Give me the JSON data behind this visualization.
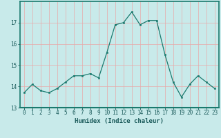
{
  "x": [
    0,
    1,
    2,
    3,
    4,
    5,
    6,
    7,
    8,
    9,
    10,
    11,
    12,
    13,
    14,
    15,
    16,
    17,
    18,
    19,
    20,
    21,
    22,
    23
  ],
  "y": [
    13.7,
    14.1,
    13.8,
    13.7,
    13.9,
    14.2,
    14.5,
    14.5,
    14.6,
    14.4,
    15.6,
    16.9,
    17.0,
    17.5,
    16.9,
    17.1,
    17.1,
    15.5,
    14.2,
    13.5,
    14.1,
    14.5,
    14.2,
    13.9
  ],
  "line_color": "#1a7a6e",
  "marker_color": "#1a7a6e",
  "bg_color": "#c8eaea",
  "grid_color": "#e8a8a8",
  "xlabel": "Humidex (Indice chaleur)",
  "ylim": [
    13,
    18
  ],
  "xlim": [
    -0.5,
    23.5
  ],
  "yticks": [
    13,
    14,
    15,
    16,
    17
  ],
  "xticks": [
    0,
    1,
    2,
    3,
    4,
    5,
    6,
    7,
    8,
    9,
    10,
    11,
    12,
    13,
    14,
    15,
    16,
    17,
    18,
    19,
    20,
    21,
    22,
    23
  ],
  "tick_color": "#1a5a5a",
  "label_fontsize": 6.5,
  "tick_fontsize": 5.5,
  "border_color": "#1a7a6e",
  "axis_bg_dark": "#1a7a6e"
}
